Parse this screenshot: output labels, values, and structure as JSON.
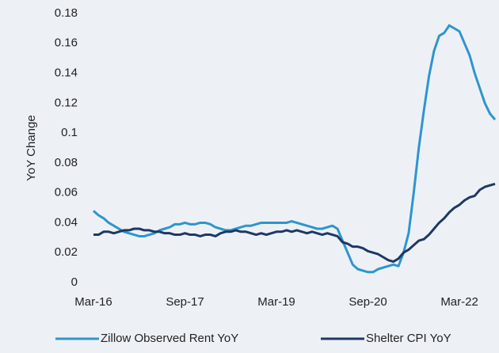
{
  "chart_data": {
    "type": "line",
    "ylabel": "YoY Change",
    "categories": [
      "Mar-16",
      null,
      null,
      null,
      null,
      null,
      null,
      null,
      null,
      null,
      null,
      null,
      null,
      null,
      null,
      null,
      null,
      null,
      "Sep-17",
      null,
      null,
      null,
      null,
      null,
      null,
      null,
      null,
      null,
      null,
      null,
      null,
      null,
      null,
      null,
      null,
      null,
      "Mar-19",
      null,
      null,
      null,
      null,
      null,
      null,
      null,
      null,
      null,
      null,
      null,
      null,
      null,
      null,
      null,
      null,
      null,
      "Sep-20",
      null,
      null,
      null,
      null,
      null,
      null,
      null,
      null,
      null,
      null,
      null,
      null,
      null,
      null,
      null,
      null,
      null,
      "Mar-22",
      null,
      null,
      null,
      null,
      null,
      null,
      null
    ],
    "series": [
      {
        "name": "Zillow Observed Rent YoY",
        "color": "#2e95cf",
        "values": [
          0.048,
          0.045,
          0.043,
          0.04,
          0.038,
          0.036,
          0.034,
          0.033,
          0.032,
          0.031,
          0.031,
          0.032,
          0.033,
          0.035,
          0.036,
          0.037,
          0.039,
          0.039,
          0.04,
          0.039,
          0.039,
          0.04,
          0.04,
          0.039,
          0.037,
          0.036,
          0.035,
          0.035,
          0.036,
          0.037,
          0.038,
          0.038,
          0.039,
          0.04,
          0.04,
          0.04,
          0.04,
          0.04,
          0.04,
          0.041,
          0.04,
          0.039,
          0.038,
          0.037,
          0.036,
          0.036,
          0.037,
          0.038,
          0.036,
          0.028,
          0.02,
          0.012,
          0.009,
          0.008,
          0.007,
          0.007,
          0.009,
          0.01,
          0.011,
          0.012,
          0.011,
          0.02,
          0.033,
          0.06,
          0.09,
          0.115,
          0.138,
          0.155,
          0.165,
          0.167,
          0.172,
          0.17,
          0.168,
          0.16,
          0.152,
          0.14,
          0.13,
          0.12,
          0.113,
          0.109
        ]
      },
      {
        "name": "Shelter CPI YoY",
        "color": "#1f3864",
        "values": [
          0.032,
          0.032,
          0.034,
          0.034,
          0.033,
          0.034,
          0.035,
          0.035,
          0.036,
          0.036,
          0.035,
          0.035,
          0.034,
          0.034,
          0.033,
          0.033,
          0.032,
          0.032,
          0.033,
          0.032,
          0.032,
          0.031,
          0.032,
          0.032,
          0.031,
          0.033,
          0.034,
          0.034,
          0.035,
          0.034,
          0.034,
          0.033,
          0.032,
          0.033,
          0.032,
          0.033,
          0.034,
          0.034,
          0.035,
          0.034,
          0.035,
          0.034,
          0.033,
          0.034,
          0.033,
          0.032,
          0.033,
          0.032,
          0.031,
          0.027,
          0.026,
          0.024,
          0.024,
          0.023,
          0.021,
          0.02,
          0.019,
          0.017,
          0.015,
          0.014,
          0.016,
          0.02,
          0.022,
          0.025,
          0.028,
          0.029,
          0.032,
          0.036,
          0.04,
          0.043,
          0.047,
          0.05,
          0.052,
          0.055,
          0.057,
          0.058,
          0.062,
          0.064,
          0.065,
          0.066
        ]
      }
    ],
    "ylim": [
      0,
      0.18
    ],
    "yticks": [
      0,
      0.02,
      0.04,
      0.06,
      0.08,
      0.1,
      0.12,
      0.14,
      0.16,
      0.18
    ],
    "grid": false,
    "legend": "bottom"
  }
}
